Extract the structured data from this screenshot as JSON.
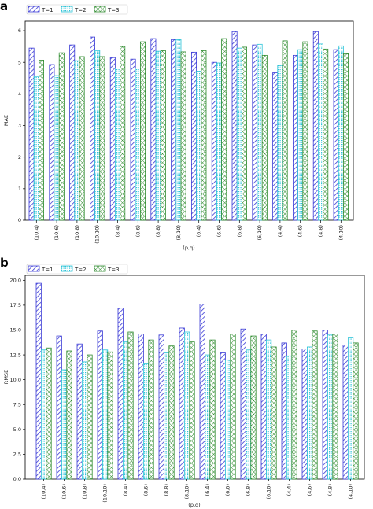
{
  "colors": {
    "T1": "#3b3bd6",
    "T2": "#2ec4d8",
    "T3": "#2e8b2e"
  },
  "chart_data": [
    {
      "type": "bar",
      "panel_label": "a",
      "categories": [
        "(10,4)",
        "(10,6)",
        "(10,8)",
        "(10,10)",
        "(8,4)",
        "(8,6)",
        "(8,8)",
        "(8,10)",
        "(6,4)",
        "(6,6)",
        "(6,8)",
        "(6,10)",
        "(4,4)",
        "(4,6)",
        "(4,8)",
        "(4,10)"
      ],
      "series": [
        {
          "name": "T=1",
          "hatch": "diagonal",
          "values": [
            5.45,
            4.93,
            5.55,
            5.8,
            5.15,
            5.1,
            5.75,
            5.72,
            5.32,
            5.0,
            5.97,
            5.55,
            4.67,
            5.22,
            5.97,
            5.4
          ]
        },
        {
          "name": "T=2",
          "hatch": "dots",
          "values": [
            4.55,
            4.58,
            5.05,
            5.37,
            4.82,
            4.82,
            5.35,
            5.72,
            4.72,
            4.98,
            5.45,
            5.57,
            4.9,
            5.4,
            5.58,
            5.52
          ]
        },
        {
          "name": "T=3",
          "hatch": "crosshatch",
          "values": [
            5.07,
            5.3,
            5.18,
            5.18,
            5.5,
            5.65,
            5.37,
            5.33,
            5.37,
            5.75,
            5.48,
            5.22,
            5.68,
            5.65,
            5.42,
            5.27
          ]
        }
      ],
      "xlabel": "(p,q)",
      "ylabel": "MAE",
      "ylim": [
        0,
        6.3
      ],
      "yticks": [
        "0",
        "1",
        "2",
        "3",
        "4",
        "5",
        "6"
      ],
      "legend": "top-left"
    },
    {
      "type": "bar",
      "panel_label": "b",
      "categories": [
        "(10,4)",
        "(10,6)",
        "(10,8)",
        "(10,10)",
        "(8,4)",
        "(8,6)",
        "(8,8)",
        "(8,10)",
        "(6,4)",
        "(6,6)",
        "(6,8)",
        "(6,10)",
        "(4,4)",
        "(4,6)",
        "(4,8)",
        "(4,10)"
      ],
      "series": [
        {
          "name": "T=1",
          "hatch": "diagonal",
          "values": [
            19.7,
            14.4,
            13.6,
            14.9,
            17.2,
            14.6,
            14.5,
            15.2,
            17.6,
            12.7,
            15.1,
            14.6,
            13.7,
            13.1,
            15.0,
            13.5
          ]
        },
        {
          "name": "T=2",
          "hatch": "dots",
          "values": [
            13.0,
            11.0,
            11.8,
            13.0,
            13.8,
            11.6,
            12.7,
            14.8,
            12.5,
            12.0,
            13.0,
            14.0,
            12.4,
            13.3,
            14.5,
            14.2
          ]
        },
        {
          "name": "T=3",
          "hatch": "crosshatch",
          "values": [
            13.2,
            12.9,
            12.5,
            12.8,
            14.8,
            14.0,
            13.4,
            13.8,
            14.0,
            14.6,
            14.4,
            13.3,
            15.0,
            14.9,
            14.6,
            13.7
          ]
        }
      ],
      "xlabel": "(p,q)",
      "ylabel": "RMSE",
      "ylim": [
        0,
        20.5
      ],
      "yticks": [
        "0.0",
        "2.5",
        "5.0",
        "7.5",
        "10.0",
        "12.5",
        "15.0",
        "17.5",
        "20.0"
      ],
      "legend": "top-left"
    }
  ]
}
